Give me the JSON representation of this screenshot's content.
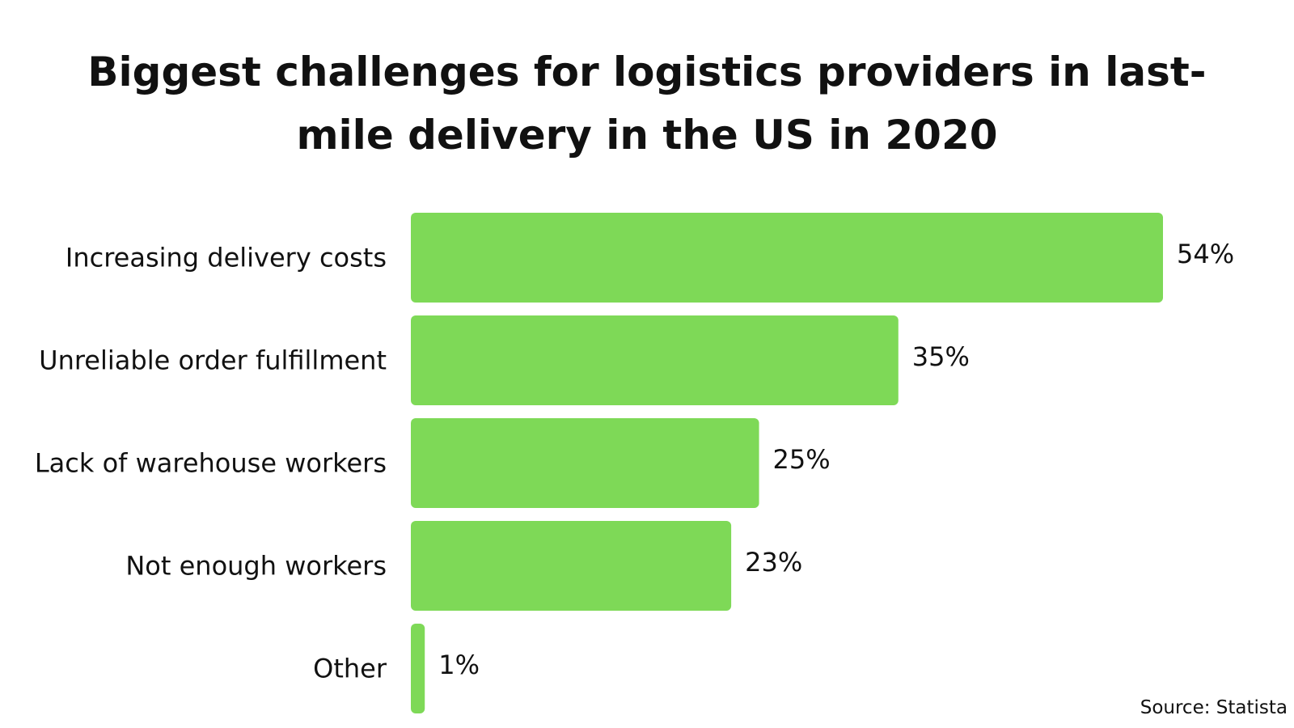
{
  "chart_data": {
    "type": "bar",
    "orientation": "horizontal",
    "title": "Biggest challenges for logistics providers in last-mile delivery in the US in 2020",
    "categories": [
      "Increasing delivery costs",
      "Unreliable order fulfillment",
      "Lack of warehouse workers",
      "Not enough workers",
      "Other"
    ],
    "values": [
      54,
      35,
      25,
      23,
      1
    ],
    "value_labels": [
      "54%",
      "35%",
      "25%",
      "23%",
      "1%"
    ],
    "unit": "%",
    "xlim": [
      0,
      54
    ],
    "grid": false,
    "bar_color": "#7ed957"
  },
  "source": "Source: Statista"
}
